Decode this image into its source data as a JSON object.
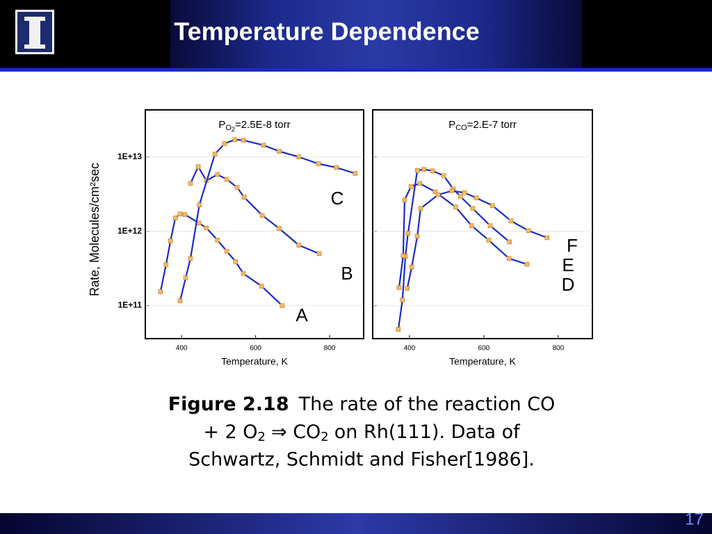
{
  "slide": {
    "title": "Temperature Dependence",
    "page": "17",
    "caption": {
      "figure": "Figure 2.18",
      "text1": "The rate of the reaction CO",
      "text2": "+ 2 O",
      "sub1": "2",
      "text3": "⇒ CO",
      "sub2": "2",
      "text4": "on Rh(111).  Data of",
      "text5": "Schwartz, Schmidt and Fisher[1986]."
    }
  },
  "chart_data": [
    {
      "type": "line",
      "title": {
        "p": "P",
        "sub": "O",
        "subsub": "2",
        "rest": "=2.5E-8 torr"
      },
      "xlabel": "Temperature, K",
      "ylabel": "Rate, Molecules/cm²sec",
      "xlim": [
        302,
        892
      ],
      "xticks": [
        400,
        600,
        800
      ],
      "ylim": [
        36000000000.0,
        43000000000000.0
      ],
      "ylog": true,
      "yticks": [
        {
          "value": 100000000000.0,
          "label": "1E+11"
        },
        {
          "value": 1000000000000.0,
          "label": "1E+12"
        },
        {
          "value": 10000000000000.0,
          "label": "1E+13"
        }
      ],
      "line_color": "#1a2bc4",
      "marker_color": "#f2b766",
      "series": [
        {
          "name": "A",
          "x": [
            343,
            358,
            370,
            383,
            396,
            409,
            447,
            467,
            497,
            522,
            546,
            567,
            616,
            672
          ],
          "values": [
            154000000000.0,
            356000000000.0,
            740000000000.0,
            1510000000000.0,
            1710000000000.0,
            1680000000000.0,
            1290000000000.0,
            1110000000000.0,
            760000000000.0,
            540000000000.0,
            390000000000.0,
            270000000000.0,
            183000000000.0,
            100000000000.0
          ]
        },
        {
          "name": "B",
          "x": [
            424,
            445,
            467,
            497,
            522,
            550,
            569,
            618,
            664,
            717,
            772
          ],
          "values": [
            4400000000000.0,
            7400000000000.0,
            4800000000000.0,
            5800000000000.0,
            5000000000000.0,
            3900000000000.0,
            2870000000000.0,
            1640000000000.0,
            1090000000000.0,
            650000000000.0,
            500000000000.0
          ]
        },
        {
          "name": "C",
          "x": [
            396,
            411,
            424,
            448,
            490,
            516,
            544,
            567,
            621,
            664,
            717,
            770,
            818,
            869
          ],
          "values": [
            116000000000.0,
            237000000000.0,
            430000000000.0,
            2260000000000.0,
            10900000000000.0,
            15100000000000.0,
            17100000000000.0,
            16800000000000.0,
            14400000000000.0,
            11900000000000.0,
            10000000000000.0,
            8100000000000.0,
            7200000000000.0,
            6000000000000.0
          ]
        }
      ]
    },
    {
      "type": "line",
      "title": {
        "p": "P",
        "sub": "CO",
        "rest": "=2.E-7 torr"
      },
      "xlabel": "Temperature, K",
      "xlim": [
        301,
        892
      ],
      "xticks": [
        400,
        600,
        800
      ],
      "ylim": [
        36000000000.0,
        43000000000000.0
      ],
      "ylog": true,
      "yticks": [
        100000000000.0,
        1000000000000.0,
        10000000000000.0
      ],
      "line_color": "#1a2bc4",
      "marker_color": "#f2b766",
      "series": [
        {
          "name": "D",
          "x": [
            370,
            381,
            389,
            396,
            421,
            439,
            462,
            492,
            518,
            537,
            570,
            617,
            669
          ],
          "values": [
            48000000000.0,
            119000000000.0,
            460000000000.0,
            940000000000.0,
            6600000000000.0,
            6800000000000.0,
            6500000000000.0,
            5600000000000.0,
            3700000000000.0,
            2930000000000.0,
            2030000000000.0,
            1190000000000.0,
            720000000000.0
          ]
        },
        {
          "name": "E",
          "x": [
            372,
            383,
            387,
            404,
            428,
            469,
            524,
            567,
            613,
            668,
            716
          ],
          "values": [
            175000000000.0,
            470000000000.0,
            2640000000000.0,
            4000000000000.0,
            4400000000000.0,
            3400000000000.0,
            2120000000000.0,
            1190000000000.0,
            760000000000.0,
            430000000000.0,
            360000000000.0
          ]
        },
        {
          "name": "F",
          "x": [
            394,
            406,
            421,
            430,
            477,
            514,
            548,
            580,
            623,
            673,
            720,
            770
          ],
          "values": [
            171000000000.0,
            330000000000.0,
            860000000000.0,
            2030000000000.0,
            3100000000000.0,
            3500000000000.0,
            3300000000000.0,
            2810000000000.0,
            2220000000000.0,
            1380000000000.0,
            1020000000000.0,
            820000000000.0
          ]
        }
      ]
    }
  ]
}
